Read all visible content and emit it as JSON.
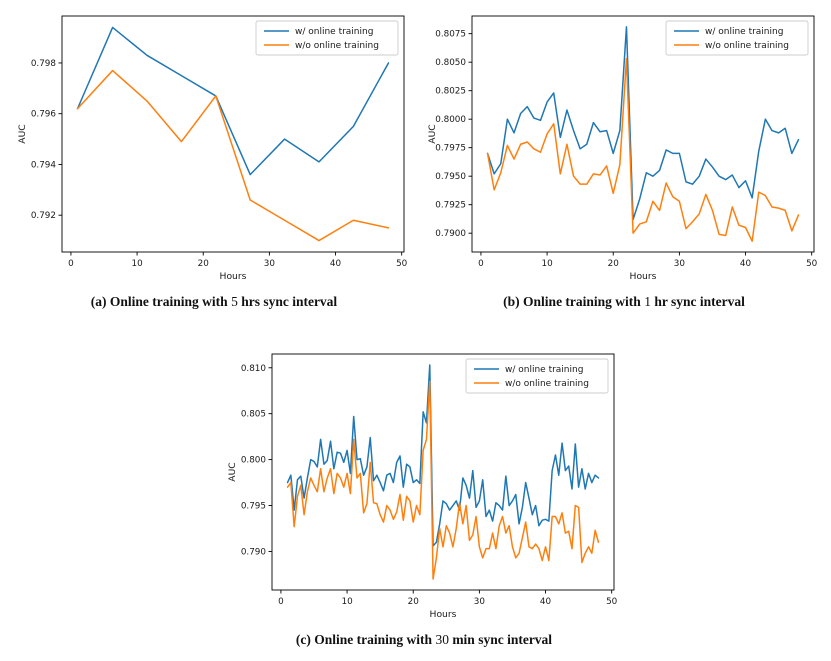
{
  "page": {
    "background": "#ffffff"
  },
  "legend_labels": [
    "w/ online training",
    "w/o online training"
  ],
  "colors": {
    "with_online": "#1f77b4",
    "without_online": "#ff7f0e",
    "axis": "#000000",
    "legend_border": "#cccccc"
  },
  "chart_data": [
    {
      "type": "line",
      "caption": {
        "bold_before": "(a) Online training with ",
        "value": "5",
        "bold_after": " hrs sync interval"
      },
      "xlabel": "Hours",
      "ylabel": "AUC",
      "xlim": [
        -1.35,
        50.35
      ],
      "ylim": [
        0.79055,
        0.79985
      ],
      "xticks": [
        0,
        10,
        20,
        30,
        40,
        50
      ],
      "yticks": [
        0.792,
        0.794,
        0.796,
        0.798
      ],
      "ytick_decimals": 3,
      "grid": false,
      "legend_position": "upper right",
      "series": [
        {
          "name": "w/ online training",
          "color": "#1f77b4",
          "x": [
            1,
            6.3,
            11.5,
            16.7,
            21.9,
            27.1,
            32.3,
            37.5,
            42.7,
            48
          ],
          "y": [
            0.7962,
            0.7994,
            0.7983,
            0.7975,
            0.7967,
            0.7936,
            0.795,
            0.7941,
            0.7955,
            0.798
          ]
        },
        {
          "name": "w/o online training",
          "color": "#ff7f0e",
          "x": [
            1,
            6.3,
            11.5,
            16.7,
            21.9,
            27.1,
            32.3,
            37.5,
            42.7,
            48
          ],
          "y": [
            0.7962,
            0.7977,
            0.7965,
            0.7949,
            0.7967,
            0.7926,
            0.7918,
            0.791,
            0.7918,
            0.7915
          ]
        }
      ]
    },
    {
      "type": "line",
      "caption": {
        "bold_before": "(b) Online training with ",
        "value": "1",
        "bold_after": " hr sync interval"
      },
      "xlabel": "Hours",
      "ylabel": "AUC",
      "xlim": [
        -1.35,
        50.35
      ],
      "ylim": [
        0.78835,
        0.80905
      ],
      "xticks": [
        0,
        10,
        20,
        30,
        40,
        50
      ],
      "yticks": [
        0.79,
        0.7925,
        0.795,
        0.7975,
        0.8,
        0.8025,
        0.805,
        0.8075
      ],
      "ytick_decimals": 4,
      "grid": false,
      "legend_position": "upper right",
      "series": [
        {
          "name": "w/ online training",
          "color": "#1f77b4",
          "x_start": 1,
          "x_step": 1,
          "y": [
            0.797,
            0.7952,
            0.7961,
            0.8,
            0.7988,
            0.8005,
            0.8011,
            0.8001,
            0.7999,
            0.8015,
            0.8023,
            0.7984,
            0.8008,
            0.799,
            0.7974,
            0.7978,
            0.7997,
            0.7989,
            0.799,
            0.797,
            0.799,
            0.8081,
            0.7912,
            0.793,
            0.7953,
            0.795,
            0.7955,
            0.7973,
            0.797,
            0.797,
            0.7945,
            0.7943,
            0.795,
            0.7965,
            0.7958,
            0.795,
            0.7947,
            0.7951,
            0.794,
            0.7946,
            0.7931,
            0.7972,
            0.8,
            0.799,
            0.7988,
            0.7992,
            0.797,
            0.7982
          ]
        },
        {
          "name": "w/o online training",
          "color": "#ff7f0e",
          "x_start": 1,
          "x_step": 1,
          "y": [
            0.797,
            0.7938,
            0.7953,
            0.7977,
            0.7965,
            0.7978,
            0.798,
            0.7974,
            0.7971,
            0.7987,
            0.7996,
            0.7952,
            0.7978,
            0.795,
            0.7943,
            0.7943,
            0.7952,
            0.7951,
            0.7959,
            0.7935,
            0.796,
            0.8053,
            0.79,
            0.7908,
            0.791,
            0.7928,
            0.792,
            0.7944,
            0.7932,
            0.7928,
            0.7904,
            0.791,
            0.7917,
            0.7934,
            0.792,
            0.7899,
            0.7898,
            0.7923,
            0.7907,
            0.7905,
            0.7893,
            0.7936,
            0.7933,
            0.7923,
            0.7922,
            0.792,
            0.7902,
            0.7916
          ]
        }
      ]
    },
    {
      "type": "line",
      "caption": {
        "bold_before": "(c) Online training with ",
        "value": "30",
        "bold_after": " min sync interval"
      },
      "xlabel": "Hours",
      "ylabel": "AUC",
      "xlim": [
        -1.35,
        50.35
      ],
      "ylim": [
        0.7858,
        0.8115
      ],
      "xticks": [
        0,
        10,
        20,
        30,
        40,
        50
      ],
      "yticks": [
        0.79,
        0.795,
        0.8,
        0.805,
        0.81
      ],
      "ytick_decimals": 3,
      "grid": false,
      "legend_position": "upper right",
      "series": [
        {
          "name": "w/ online training",
          "color": "#1f77b4",
          "x_start": 1,
          "x_step": 0.5,
          "y": [
            0.7975,
            0.7983,
            0.7945,
            0.7978,
            0.7982,
            0.7958,
            0.798,
            0.8,
            0.7998,
            0.7992,
            0.8022,
            0.7995,
            0.7999,
            0.802,
            0.799,
            0.8008,
            0.8007,
            0.7997,
            0.801,
            0.7985,
            0.8047,
            0.8,
            0.8001,
            0.7983,
            0.7992,
            0.8024,
            0.7977,
            0.7983,
            0.7975,
            0.7966,
            0.7983,
            0.7985,
            0.7975,
            0.7997,
            0.8004,
            0.797,
            0.7995,
            0.7992,
            0.7975,
            0.7978,
            0.7974,
            0.8052,
            0.804,
            0.8103,
            0.7906,
            0.791,
            0.793,
            0.7955,
            0.7952,
            0.7945,
            0.795,
            0.7955,
            0.7945,
            0.798,
            0.7972,
            0.7958,
            0.7988,
            0.7948,
            0.7955,
            0.7978,
            0.7938,
            0.7945,
            0.7933,
            0.7953,
            0.795,
            0.7945,
            0.7982,
            0.795,
            0.7955,
            0.7962,
            0.793,
            0.7948,
            0.7975,
            0.7958,
            0.794,
            0.795,
            0.7928,
            0.7934,
            0.7935,
            0.7933,
            0.7988,
            0.8005,
            0.7983,
            0.8018,
            0.7988,
            0.7993,
            0.7968,
            0.8017,
            0.797,
            0.799,
            0.7968,
            0.7985,
            0.7975,
            0.7983,
            0.798
          ]
        },
        {
          "name": "w/o online training",
          "color": "#ff7f0e",
          "x_start": 1,
          "x_step": 0.5,
          "y": [
            0.797,
            0.7975,
            0.7927,
            0.796,
            0.7972,
            0.794,
            0.7965,
            0.798,
            0.7972,
            0.7965,
            0.799,
            0.7965,
            0.798,
            0.799,
            0.7963,
            0.7985,
            0.798,
            0.797,
            0.7985,
            0.7963,
            0.8022,
            0.798,
            0.7985,
            0.7942,
            0.7952,
            0.7997,
            0.7953,
            0.7952,
            0.794,
            0.7932,
            0.795,
            0.7945,
            0.7935,
            0.7943,
            0.7962,
            0.7934,
            0.796,
            0.7955,
            0.7932,
            0.795,
            0.794,
            0.801,
            0.8022,
            0.8085,
            0.787,
            0.7893,
            0.7925,
            0.7905,
            0.7928,
            0.792,
            0.7905,
            0.7925,
            0.7953,
            0.793,
            0.795,
            0.7912,
            0.7918,
            0.7938,
            0.7905,
            0.7893,
            0.7903,
            0.7903,
            0.792,
            0.7903,
            0.7928,
            0.7938,
            0.792,
            0.7928,
            0.7905,
            0.7893,
            0.7898,
            0.7915,
            0.7932,
            0.7905,
            0.7903,
            0.7908,
            0.7903,
            0.789,
            0.7905,
            0.789,
            0.7938,
            0.7938,
            0.793,
            0.7942,
            0.792,
            0.7922,
            0.7903,
            0.795,
            0.7948,
            0.7888,
            0.7898,
            0.7905,
            0.7898,
            0.7923,
            0.791
          ]
        }
      ]
    }
  ]
}
